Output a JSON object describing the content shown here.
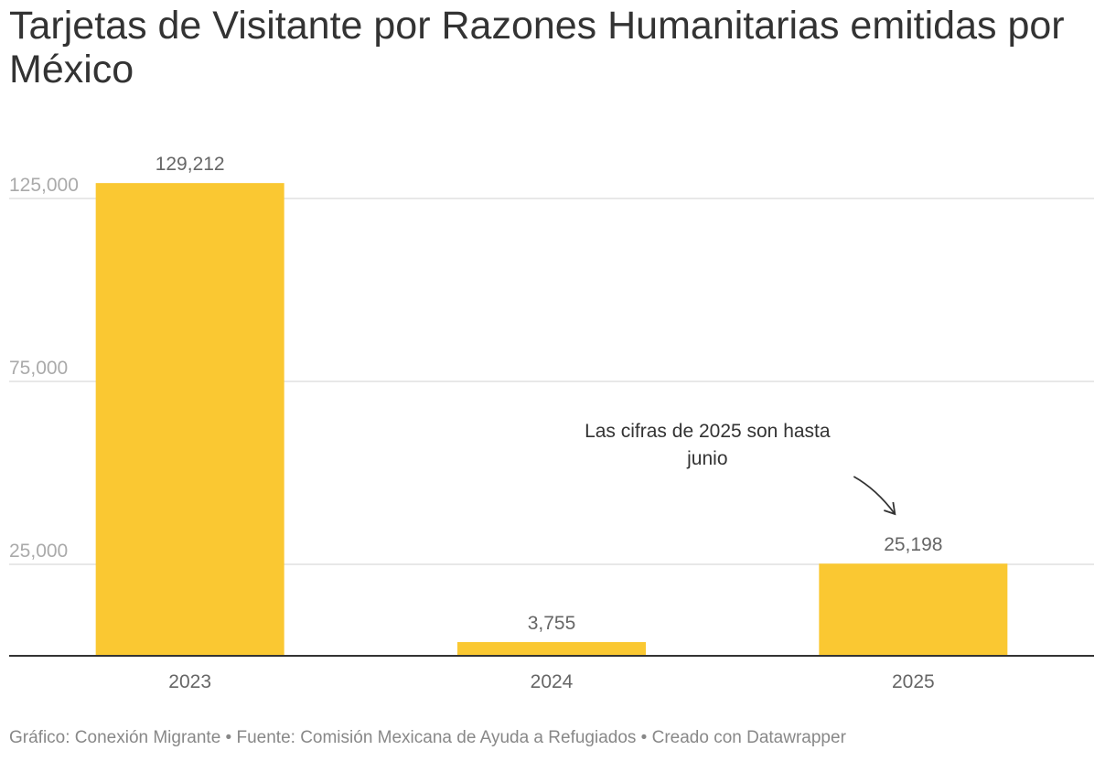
{
  "title": "Tarjetas de Visitante por Razones Humanitarias emitidas por México",
  "footer": "Gráfico: Conexión Migrante • Fuente: Comisión Mexicana de Ayuda a Refugiados • Creado con Datawrapper",
  "chart_data": {
    "type": "bar",
    "title": "Tarjetas de Visitante por Razones Humanitarias emitidas por México",
    "categories": [
      "2023",
      "2024",
      "2025"
    ],
    "values": [
      129212,
      3755,
      25198
    ],
    "value_labels": [
      "129,212",
      "3,755",
      "25,198"
    ],
    "yticks": [
      25000,
      75000,
      125000
    ],
    "ytick_labels": [
      "25,000",
      "75,000",
      "125,000"
    ],
    "ylim": [
      0,
      125000
    ],
    "grid": true,
    "bar_color": "#fac832",
    "annotation": {
      "lines": [
        "Las cifras de 2025 son hasta",
        "junio"
      ],
      "target_category": "2025"
    }
  }
}
